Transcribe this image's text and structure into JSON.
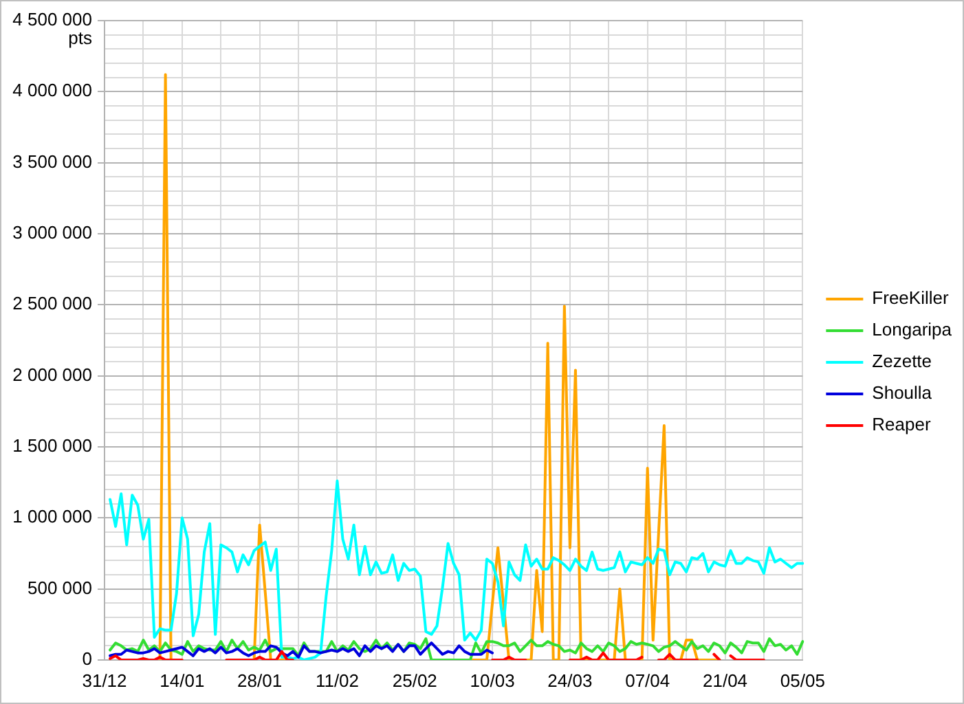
{
  "chart_data": {
    "type": "line",
    "ylabel": "pts",
    "categories": [
      "31/12",
      null,
      null,
      null,
      null,
      null,
      null,
      null,
      null,
      null,
      null,
      null,
      null,
      null,
      "14/01",
      null,
      null,
      null,
      null,
      null,
      null,
      null,
      null,
      null,
      null,
      null,
      null,
      null,
      "28/01",
      null,
      null,
      null,
      null,
      null,
      null,
      null,
      null,
      null,
      null,
      null,
      null,
      null,
      "11/02",
      null,
      null,
      null,
      null,
      null,
      null,
      null,
      null,
      null,
      null,
      null,
      null,
      null,
      "25/02",
      null,
      null,
      null,
      null,
      null,
      null,
      null,
      null,
      null,
      null,
      null,
      null,
      null,
      "10/03",
      null,
      null,
      null,
      null,
      null,
      null,
      null,
      null,
      null,
      null,
      null,
      null,
      null,
      "24/03",
      null,
      null,
      null,
      null,
      null,
      null,
      null,
      null,
      null,
      null,
      null,
      null,
      null,
      "07/04",
      null,
      null,
      null,
      null,
      null,
      null,
      null,
      null,
      null,
      null,
      null,
      null,
      null,
      "21/04",
      null,
      null,
      null,
      null,
      null,
      null,
      null,
      null,
      null,
      null,
      null,
      null,
      null,
      "05/05"
    ],
    "series": [
      {
        "name": "FreeKiller",
        "color": "#ffa500",
        "values": [
          null,
          null,
          null,
          null,
          null,
          null,
          null,
          null,
          null,
          null,
          0,
          4120000,
          0,
          0,
          null,
          null,
          null,
          null,
          null,
          null,
          null,
          null,
          null,
          null,
          null,
          null,
          null,
          0,
          950000,
          480000,
          0,
          0,
          0,
          0,
          null,
          null,
          null,
          null,
          null,
          null,
          null,
          null,
          null,
          null,
          null,
          null,
          null,
          null,
          null,
          null,
          null,
          null,
          null,
          null,
          null,
          null,
          null,
          null,
          null,
          0,
          0,
          0,
          0,
          0,
          0,
          0,
          0,
          0,
          0,
          0,
          400000,
          790000,
          400000,
          0,
          0,
          0,
          0,
          0,
          630000,
          200000,
          2230000,
          0,
          0,
          2490000,
          790000,
          2040000,
          0,
          0,
          0,
          0,
          0,
          0,
          0,
          500000,
          0,
          0,
          0,
          0,
          1350000,
          140000,
          890000,
          1650000,
          0,
          0,
          0,
          140000,
          140000,
          0,
          0,
          0,
          0,
          0,
          null,
          null,
          null,
          null,
          null,
          null,
          null,
          null,
          null,
          null,
          null,
          null,
          null,
          null,
          null
        ]
      },
      {
        "name": "Longaripa",
        "color": "#33dd33",
        "values": [
          null,
          70000,
          120000,
          100000,
          70000,
          80000,
          60000,
          140000,
          70000,
          100000,
          60000,
          120000,
          70000,
          60000,
          40000,
          130000,
          60000,
          100000,
          80000,
          70000,
          70000,
          130000,
          60000,
          140000,
          80000,
          130000,
          70000,
          90000,
          70000,
          140000,
          60000,
          80000,
          80000,
          80000,
          80000,
          30000,
          120000,
          60000,
          60000,
          60000,
          60000,
          130000,
          60000,
          100000,
          70000,
          130000,
          80000,
          60000,
          80000,
          140000,
          80000,
          120000,
          70000,
          110000,
          60000,
          120000,
          110000,
          80000,
          150000,
          0,
          0,
          0,
          0,
          0,
          0,
          0,
          0,
          120000,
          50000,
          130000,
          130000,
          120000,
          100000,
          100000,
          120000,
          60000,
          100000,
          140000,
          100000,
          100000,
          130000,
          110000,
          100000,
          60000,
          70000,
          50000,
          120000,
          80000,
          60000,
          100000,
          60000,
          120000,
          100000,
          60000,
          80000,
          130000,
          110000,
          120000,
          110000,
          100000,
          60000,
          90000,
          100000,
          130000,
          100000,
          70000,
          130000,
          80000,
          100000,
          60000,
          120000,
          100000,
          50000,
          120000,
          90000,
          50000,
          130000,
          120000,
          120000,
          60000,
          150000,
          100000,
          110000,
          70000,
          100000,
          40000,
          130000
        ]
      },
      {
        "name": "Zezette",
        "color": "#00ffff",
        "values": [
          null,
          1130000,
          940000,
          1170000,
          810000,
          1160000,
          1090000,
          850000,
          990000,
          160000,
          220000,
          210000,
          210000,
          470000,
          1000000,
          850000,
          170000,
          320000,
          760000,
          960000,
          180000,
          810000,
          790000,
          760000,
          620000,
          740000,
          670000,
          770000,
          800000,
          830000,
          630000,
          780000,
          20000,
          20000,
          10000,
          20000,
          0,
          10000,
          20000,
          50000,
          450000,
          770000,
          1260000,
          850000,
          710000,
          950000,
          600000,
          800000,
          600000,
          690000,
          610000,
          620000,
          740000,
          560000,
          680000,
          630000,
          640000,
          590000,
          200000,
          180000,
          240000,
          510000,
          820000,
          680000,
          600000,
          140000,
          190000,
          140000,
          210000,
          710000,
          680000,
          550000,
          240000,
          690000,
          600000,
          560000,
          810000,
          660000,
          710000,
          640000,
          640000,
          720000,
          700000,
          670000,
          630000,
          710000,
          660000,
          630000,
          760000,
          640000,
          630000,
          640000,
          650000,
          760000,
          620000,
          690000,
          680000,
          670000,
          720000,
          680000,
          780000,
          770000,
          600000,
          690000,
          680000,
          620000,
          720000,
          710000,
          750000,
          620000,
          690000,
          670000,
          660000,
          770000,
          680000,
          680000,
          720000,
          700000,
          690000,
          610000,
          790000,
          690000,
          710000,
          680000,
          650000,
          680000,
          680000
        ]
      },
      {
        "name": "Shoulla",
        "color": "#0000dd",
        "values": [
          null,
          30000,
          40000,
          40000,
          70000,
          60000,
          50000,
          50000,
          60000,
          80000,
          50000,
          60000,
          70000,
          80000,
          90000,
          60000,
          30000,
          80000,
          60000,
          80000,
          50000,
          90000,
          50000,
          60000,
          80000,
          50000,
          30000,
          50000,
          60000,
          60000,
          100000,
          90000,
          50000,
          30000,
          60000,
          20000,
          100000,
          60000,
          60000,
          50000,
          60000,
          70000,
          60000,
          80000,
          60000,
          80000,
          30000,
          100000,
          60000,
          100000,
          80000,
          100000,
          60000,
          110000,
          60000,
          100000,
          100000,
          40000,
          80000,
          120000,
          80000,
          40000,
          60000,
          50000,
          100000,
          60000,
          40000,
          40000,
          40000,
          70000,
          50000,
          null,
          null,
          null,
          null,
          null,
          null,
          null,
          null,
          null,
          null,
          null,
          null,
          null,
          null,
          null,
          null,
          null,
          null,
          null,
          null,
          null,
          null,
          null,
          null,
          null,
          null,
          null,
          null,
          null,
          null,
          null,
          null,
          null,
          null,
          null,
          null,
          null,
          null,
          null,
          null,
          null,
          null,
          null,
          null,
          null,
          null,
          null,
          null,
          null,
          null,
          null,
          null,
          null,
          null,
          null,
          null
        ]
      },
      {
        "name": "Reaper",
        "color": "#ff0000",
        "values": [
          null,
          10000,
          30000,
          0,
          0,
          0,
          0,
          10000,
          0,
          0,
          20000,
          0,
          0,
          0,
          0,
          null,
          null,
          null,
          null,
          null,
          null,
          null,
          0,
          0,
          0,
          0,
          0,
          0,
          20000,
          0,
          0,
          0,
          60000,
          0,
          0,
          null,
          null,
          null,
          null,
          null,
          null,
          null,
          null,
          null,
          null,
          null,
          null,
          null,
          null,
          null,
          null,
          null,
          null,
          null,
          null,
          null,
          null,
          null,
          null,
          null,
          null,
          null,
          null,
          null,
          null,
          null,
          null,
          null,
          null,
          null,
          0,
          0,
          0,
          20000,
          0,
          0,
          0,
          null,
          null,
          null,
          null,
          null,
          null,
          null,
          0,
          0,
          0,
          20000,
          0,
          0,
          50000,
          0,
          0,
          0,
          0,
          0,
          0,
          20000,
          null,
          null,
          0,
          0,
          40000,
          0,
          0,
          0,
          0,
          0,
          null,
          null,
          40000,
          0,
          null,
          30000,
          0,
          0,
          0,
          0,
          0,
          0,
          null,
          null,
          null,
          null,
          null,
          null,
          null
        ]
      }
    ],
    "ylim": [
      0,
      4500000
    ],
    "yticks": [
      {
        "value": 0,
        "label": "0"
      },
      {
        "value": 100000,
        "label": null
      },
      {
        "value": 200000,
        "label": null
      },
      {
        "value": 300000,
        "label": null
      },
      {
        "value": 400000,
        "label": null
      },
      {
        "value": 500000,
        "label": "500 000"
      },
      {
        "value": 600000,
        "label": null
      },
      {
        "value": 700000,
        "label": null
      },
      {
        "value": 800000,
        "label": null
      },
      {
        "value": 900000,
        "label": null
      },
      {
        "value": 1000000,
        "label": "1 000 000"
      },
      {
        "value": 1100000,
        "label": null
      },
      {
        "value": 1200000,
        "label": null
      },
      {
        "value": 1300000,
        "label": null
      },
      {
        "value": 1400000,
        "label": null
      },
      {
        "value": 1500000,
        "label": "1 500 000"
      },
      {
        "value": 1600000,
        "label": null
      },
      {
        "value": 1700000,
        "label": null
      },
      {
        "value": 1800000,
        "label": null
      },
      {
        "value": 1900000,
        "label": null
      },
      {
        "value": 2000000,
        "label": "2 000 000"
      },
      {
        "value": 2100000,
        "label": null
      },
      {
        "value": 2200000,
        "label": null
      },
      {
        "value": 2300000,
        "label": null
      },
      {
        "value": 2400000,
        "label": null
      },
      {
        "value": 2500000,
        "label": "2 500 000"
      },
      {
        "value": 2600000,
        "label": null
      },
      {
        "value": 2700000,
        "label": null
      },
      {
        "value": 2800000,
        "label": null
      },
      {
        "value": 2900000,
        "label": null
      },
      {
        "value": 3000000,
        "label": "3 000 000"
      },
      {
        "value": 3100000,
        "label": null
      },
      {
        "value": 3200000,
        "label": null
      },
      {
        "value": 3300000,
        "label": null
      },
      {
        "value": 3400000,
        "label": null
      },
      {
        "value": 3500000,
        "label": "3 500 000"
      },
      {
        "value": 3600000,
        "label": null
      },
      {
        "value": 3700000,
        "label": null
      },
      {
        "value": 3800000,
        "label": null
      },
      {
        "value": 3900000,
        "label": null
      },
      {
        "value": 4000000,
        "label": "4 000 000"
      },
      {
        "value": 4100000,
        "label": null
      },
      {
        "value": 4200000,
        "label": null
      },
      {
        "value": 4300000,
        "label": null
      },
      {
        "value": 4400000,
        "label": null
      },
      {
        "value": 4500000,
        "label": "4 500 000"
      }
    ],
    "grid": true,
    "legend": "right",
    "marker": "none",
    "line_style": "solid"
  }
}
